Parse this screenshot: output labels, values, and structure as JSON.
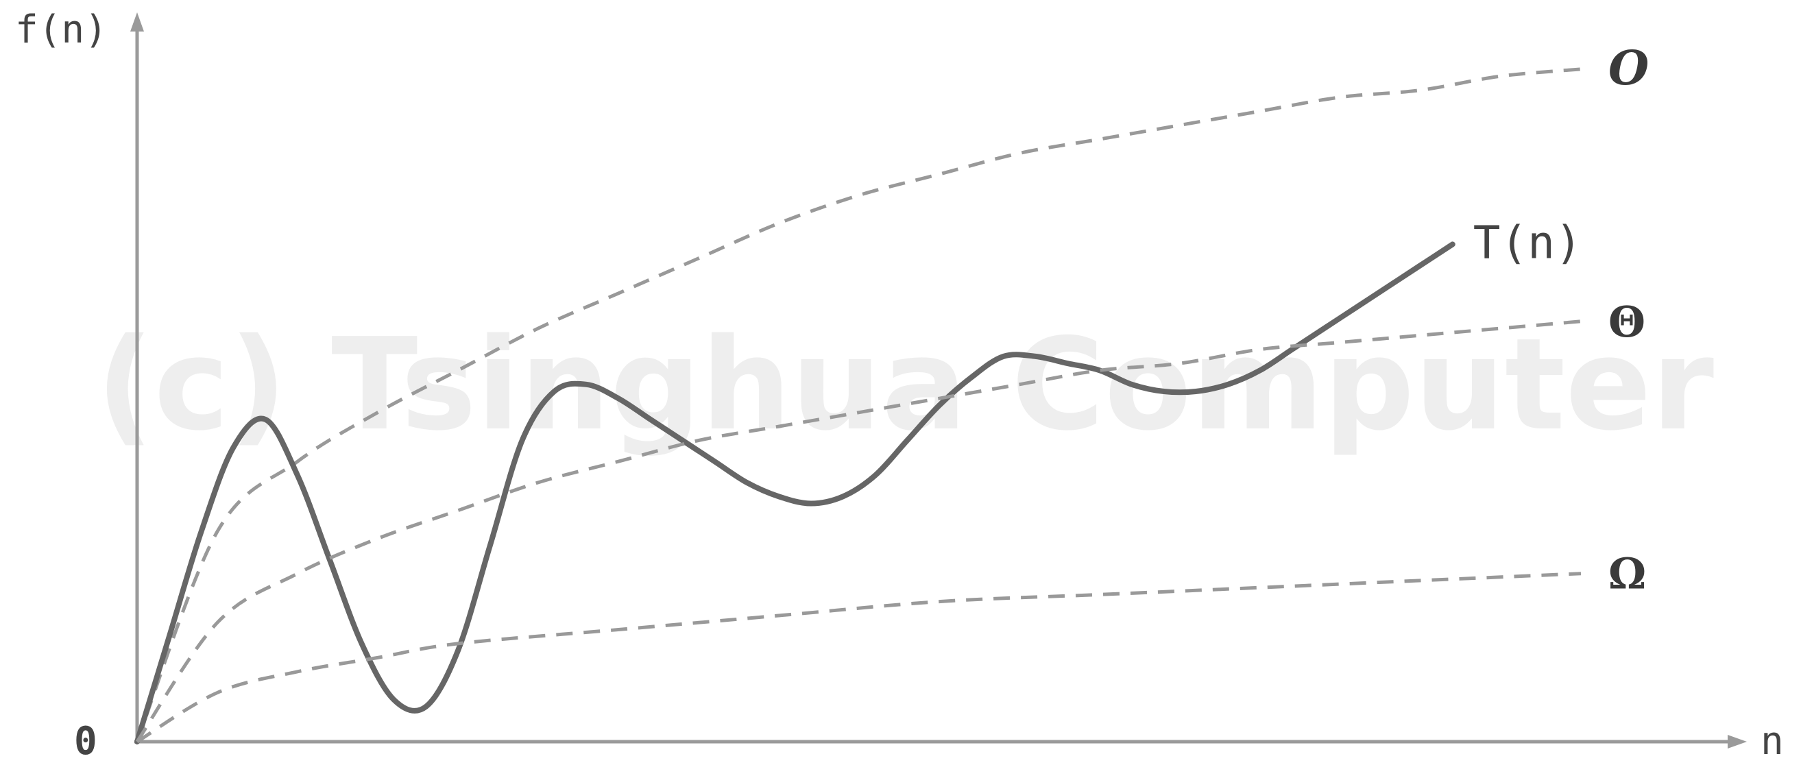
{
  "chart_data": {
    "type": "line",
    "title": "",
    "xlabel": "n",
    "ylabel": "f(n)",
    "origin_label": "0",
    "xlim": [
      0,
      1
    ],
    "ylim": [
      0,
      1
    ],
    "grid": false,
    "watermark": "(c) Tsinghua Computer",
    "series": [
      {
        "name": "O",
        "style": "dashed",
        "color": "#999999",
        "points": [
          [
            0,
            0
          ],
          [
            0.05,
            0.3
          ],
          [
            0.1,
            0.4
          ],
          [
            0.15,
            0.47
          ],
          [
            0.2,
            0.53
          ],
          [
            0.25,
            0.59
          ],
          [
            0.3,
            0.64
          ],
          [
            0.35,
            0.69
          ],
          [
            0.4,
            0.74
          ],
          [
            0.45,
            0.78
          ],
          [
            0.5,
            0.81
          ],
          [
            0.55,
            0.84
          ],
          [
            0.6,
            0.86
          ],
          [
            0.65,
            0.88
          ],
          [
            0.7,
            0.9
          ],
          [
            0.75,
            0.92
          ],
          [
            0.8,
            0.93
          ],
          [
            0.85,
            0.95
          ],
          [
            0.9,
            0.96
          ]
        ]
      },
      {
        "name": "T(n)",
        "style": "solid",
        "color": "#666666",
        "points": [
          [
            0,
            0
          ],
          [
            0.02,
            0.15
          ],
          [
            0.04,
            0.3
          ],
          [
            0.06,
            0.42
          ],
          [
            0.08,
            0.46
          ],
          [
            0.1,
            0.38
          ],
          [
            0.12,
            0.26
          ],
          [
            0.14,
            0.14
          ],
          [
            0.16,
            0.06
          ],
          [
            0.18,
            0.05
          ],
          [
            0.2,
            0.13
          ],
          [
            0.22,
            0.28
          ],
          [
            0.24,
            0.43
          ],
          [
            0.26,
            0.5
          ],
          [
            0.28,
            0.51
          ],
          [
            0.3,
            0.49
          ],
          [
            0.32,
            0.46
          ],
          [
            0.34,
            0.43
          ],
          [
            0.36,
            0.4
          ],
          [
            0.38,
            0.37
          ],
          [
            0.4,
            0.35
          ],
          [
            0.42,
            0.34
          ],
          [
            0.44,
            0.35
          ],
          [
            0.46,
            0.38
          ],
          [
            0.48,
            0.43
          ],
          [
            0.5,
            0.48
          ],
          [
            0.52,
            0.52
          ],
          [
            0.54,
            0.55
          ],
          [
            0.56,
            0.55
          ],
          [
            0.58,
            0.54
          ],
          [
            0.6,
            0.53
          ],
          [
            0.62,
            0.51
          ],
          [
            0.64,
            0.5
          ],
          [
            0.66,
            0.5
          ],
          [
            0.68,
            0.51
          ],
          [
            0.7,
            0.53
          ],
          [
            0.72,
            0.56
          ],
          [
            0.74,
            0.59
          ],
          [
            0.76,
            0.62
          ],
          [
            0.78,
            0.65
          ],
          [
            0.8,
            0.68
          ],
          [
            0.82,
            0.71
          ]
        ]
      },
      {
        "name": "Θ",
        "style": "dashed",
        "color": "#999999",
        "points": [
          [
            0,
            0
          ],
          [
            0.05,
            0.17
          ],
          [
            0.1,
            0.24
          ],
          [
            0.15,
            0.29
          ],
          [
            0.2,
            0.33
          ],
          [
            0.25,
            0.37
          ],
          [
            0.3,
            0.4
          ],
          [
            0.35,
            0.43
          ],
          [
            0.4,
            0.45
          ],
          [
            0.45,
            0.47
          ],
          [
            0.5,
            0.49
          ],
          [
            0.55,
            0.51
          ],
          [
            0.6,
            0.53
          ],
          [
            0.65,
            0.54
          ],
          [
            0.7,
            0.56
          ],
          [
            0.75,
            0.57
          ],
          [
            0.8,
            0.58
          ],
          [
            0.85,
            0.59
          ],
          [
            0.9,
            0.6
          ]
        ]
      },
      {
        "name": "Ω",
        "style": "dashed",
        "color": "#999999",
        "points": [
          [
            0,
            0
          ],
          [
            0.05,
            0.07
          ],
          [
            0.1,
            0.1
          ],
          [
            0.15,
            0.12
          ],
          [
            0.2,
            0.14
          ],
          [
            0.3,
            0.16
          ],
          [
            0.4,
            0.18
          ],
          [
            0.5,
            0.2
          ],
          [
            0.6,
            0.21
          ],
          [
            0.7,
            0.22
          ],
          [
            0.8,
            0.23
          ],
          [
            0.9,
            0.24
          ]
        ]
      }
    ]
  }
}
